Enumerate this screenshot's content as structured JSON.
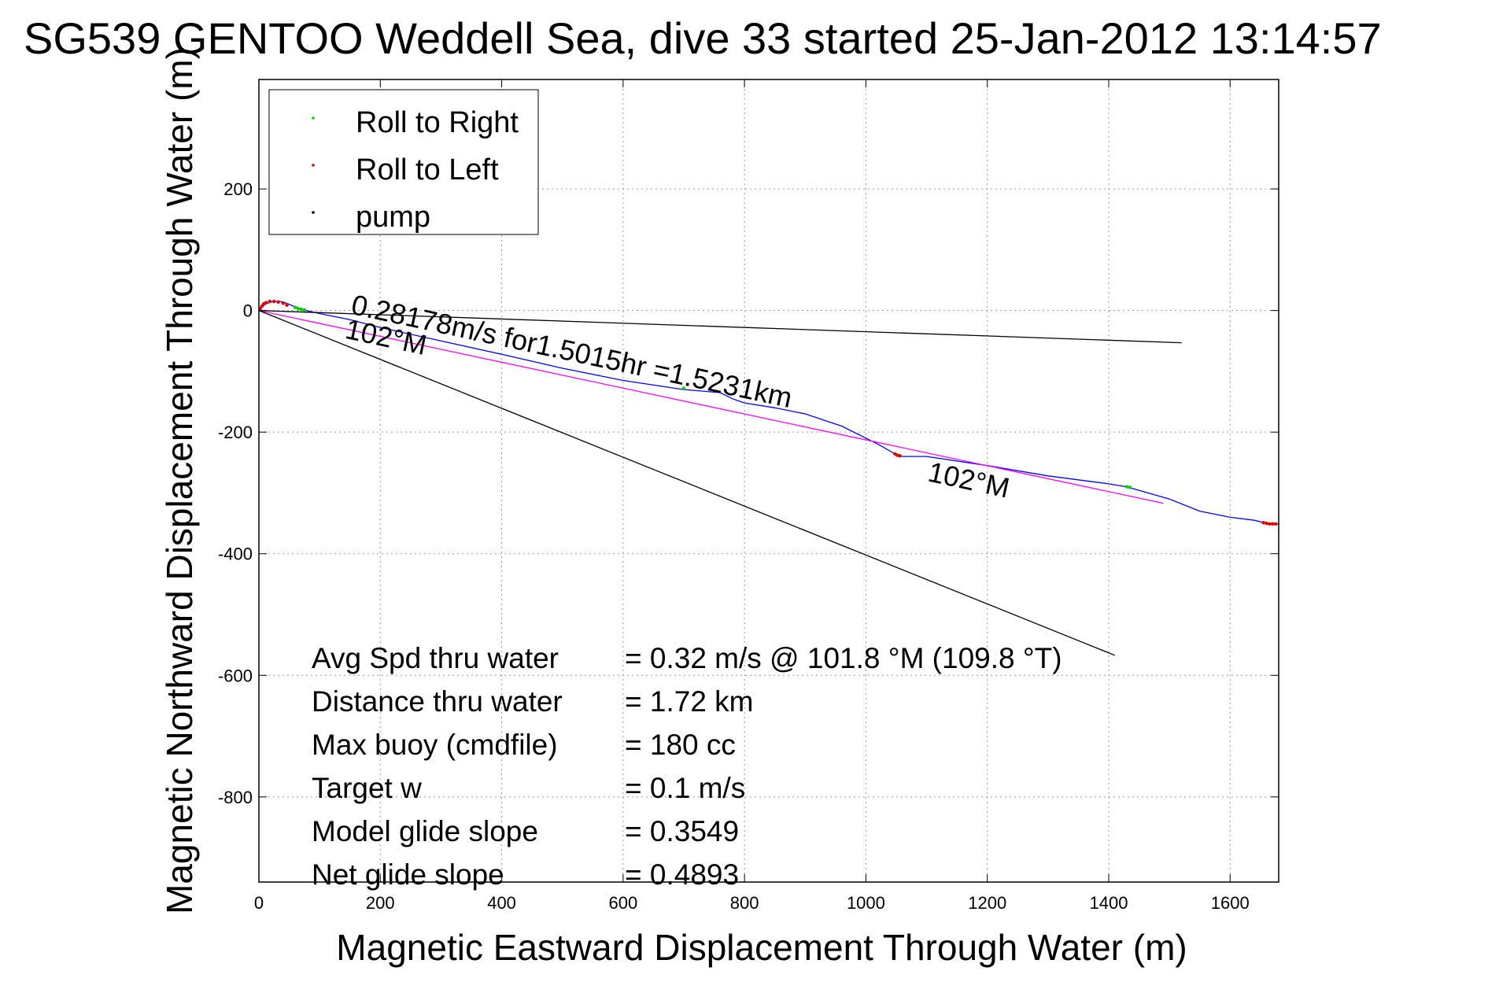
{
  "chart_data": {
    "type": "line",
    "title": "SG539 GENTOO Weddell Sea, dive 33 started 25-Jan-2012 13:14:57",
    "xlabel": "Magnetic Eastward Displacement Through Water (m)",
    "ylabel": "Magnetic Northward Displacement Through Water (m)",
    "xlim": [
      0,
      1680
    ],
    "ylim": [
      -940,
      380
    ],
    "xticks": [
      0,
      200,
      400,
      600,
      800,
      1000,
      1200,
      1400,
      1600
    ],
    "yticks": [
      200,
      0,
      -200,
      -400,
      -600,
      -800
    ],
    "grid": true,
    "legend_position": "top-left",
    "legend": [
      {
        "label": "Roll to Right",
        "color": "#00cc00"
      },
      {
        "label": "Roll to Left",
        "color": "#dd0000"
      },
      {
        "label": "pump",
        "color": "#000000"
      }
    ],
    "series": [
      {
        "color": "#0000ff",
        "x": [
          0,
          10,
          20,
          30,
          40,
          50,
          60,
          70,
          100,
          150,
          200,
          300,
          400,
          500,
          600,
          700,
          760,
          780,
          800,
          850,
          900,
          960,
          1020,
          1050,
          1060,
          1100,
          1200,
          1300,
          1400,
          1430,
          1500,
          1550,
          1600,
          1640,
          1660,
          1670,
          1680
        ],
        "y": [
          0,
          10,
          14,
          15,
          14,
          10,
          6,
          2,
          -5,
          -15,
          -28,
          -50,
          -72,
          -95,
          -115,
          -130,
          -135,
          -145,
          -152,
          -160,
          -170,
          -190,
          -220,
          -237,
          -240,
          -240,
          -255,
          -272,
          -285,
          -290,
          -310,
          -330,
          -340,
          -345,
          -350,
          -351,
          -351
        ]
      },
      {
        "color": "#ff00ff",
        "x": [
          0,
          1490
        ],
        "y": [
          0,
          -317
        ]
      },
      {
        "color": "#000000",
        "x": [
          0,
          1520
        ],
        "y": [
          0,
          -53
        ]
      },
      {
        "color": "#000000",
        "x": [
          0,
          1410
        ],
        "y": [
          0,
          -567
        ]
      }
    ],
    "roll_right_points": {
      "x": [
        60,
        65,
        70,
        75,
        700,
        1430,
        1435
      ],
      "y": [
        5,
        3,
        2,
        1,
        -128,
        -290,
        -291
      ]
    },
    "roll_left_points": {
      "x": [
        2,
        5,
        8,
        12,
        18,
        25,
        32,
        40,
        46,
        1048,
        1052,
        1056,
        1655,
        1660,
        1665,
        1670,
        1675
      ],
      "y": [
        3,
        7,
        11,
        13,
        15,
        15,
        14,
        12,
        9,
        -236,
        -238,
        -239,
        -349,
        -350,
        -351,
        -351,
        -351
      ]
    },
    "annotations": [
      {
        "text": "0.28178m/s for1.5015hr =1.5231km",
        "x": 150,
        "y": -5,
        "angle": 12.1
      },
      {
        "text": "102°M",
        "x": 140,
        "y": -45,
        "angle": 12.1
      },
      {
        "text": "102°M",
        "x": 1100,
        "y": -280,
        "angle": 12.1
      }
    ],
    "stats": [
      {
        "label": "Avg Spd thru water",
        "value": "=  0.32 m/s @ 101.8 °M (109.8 °T)"
      },
      {
        "label": "Distance thru water",
        "value": "=  1.72 km"
      },
      {
        "label": "Max buoy (cmdfile)",
        "value": "= 180 cc"
      },
      {
        "label": "Target w",
        "value": "= 0.1 m/s"
      },
      {
        "label": "Model glide slope",
        "value": "= 0.3549"
      },
      {
        "label": "Net glide slope",
        "value": "= 0.4893"
      }
    ]
  }
}
